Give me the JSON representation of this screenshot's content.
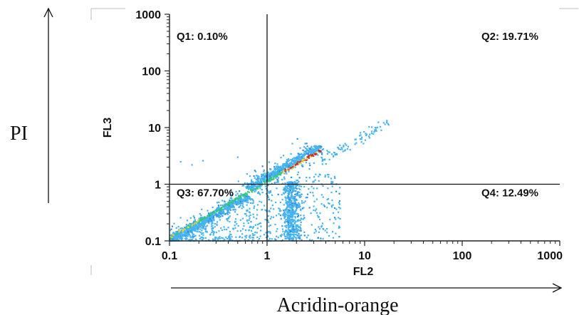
{
  "chart_data": {
    "type": "scatter",
    "title": "",
    "xlabel": "FL2",
    "ylabel": "FL3",
    "x_scale": "log",
    "y_scale": "log",
    "xlim": [
      0.1,
      1000
    ],
    "ylim": [
      0.1,
      1000
    ],
    "x_ticks": [
      "0.1",
      "1",
      "10",
      "100",
      "1000"
    ],
    "y_ticks": [
      "0.1",
      "1",
      "10",
      "100",
      "1000"
    ],
    "quadrant_gates": {
      "x": 1,
      "y": 1
    },
    "quadrants": [
      {
        "name": "Q1",
        "label": "Q1: 0.10%",
        "percent": 0.1
      },
      {
        "name": "Q2",
        "label": "Q2: 19.71%",
        "percent": 19.71
      },
      {
        "name": "Q3",
        "label": "Q3: 67.70%",
        "percent": 67.7
      },
      {
        "name": "Q4",
        "label": "Q4: 12.49%",
        "percent": 12.49
      }
    ],
    "density_colors": [
      "#46b4f0",
      "#2f8fe0",
      "#36c878",
      "#f0d23c",
      "#d7281e"
    ],
    "grid": false
  },
  "outer_axes": {
    "y_title": "PI",
    "x_title": "Acridin-orange"
  }
}
